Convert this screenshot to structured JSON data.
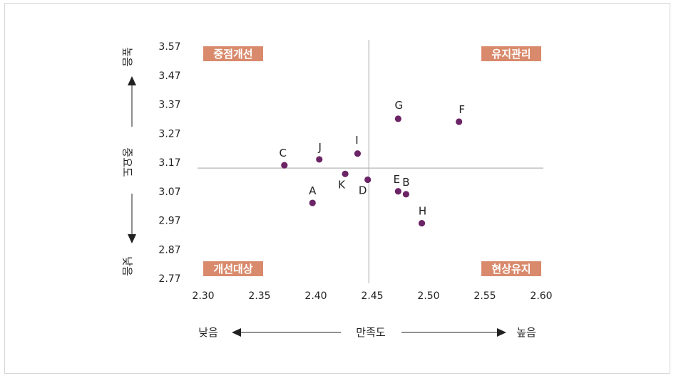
{
  "chart_data": {
    "type": "scatter",
    "title": "",
    "xlabel": "만족도",
    "ylabel": "중요도",
    "x_low_label": "낮음",
    "x_high_label": "높음",
    "y_low_label": "낮음",
    "y_high_label": "높음",
    "xlim": [
      2.3,
      2.6
    ],
    "ylim": [
      2.77,
      3.57
    ],
    "x_ticks": [
      "2.30",
      "2.35",
      "2.40",
      "2.45",
      "2.50",
      "2.55",
      "2.60"
    ],
    "y_ticks": [
      "3.57",
      "3.47",
      "3.37",
      "3.27",
      "3.17",
      "3.07",
      "2.97",
      "2.87",
      "2.77"
    ],
    "x_mean": 2.447,
    "y_mean": 3.15,
    "grid": false,
    "quadrants": {
      "top_left": "중점개선",
      "top_right": "유지관리",
      "bottom_left": "개선대상",
      "bottom_right": "현상유지"
    },
    "points": [
      {
        "label": "A",
        "x": 2.397,
        "y": 3.03
      },
      {
        "label": "B",
        "x": 2.48,
        "y": 3.06
      },
      {
        "label": "C",
        "x": 2.372,
        "y": 3.16
      },
      {
        "label": "D",
        "x": 2.446,
        "y": 3.11
      },
      {
        "label": "E",
        "x": 2.473,
        "y": 3.07
      },
      {
        "label": "F",
        "x": 2.527,
        "y": 3.31
      },
      {
        "label": "G",
        "x": 2.473,
        "y": 3.32
      },
      {
        "label": "H",
        "x": 2.494,
        "y": 2.96
      },
      {
        "label": "I",
        "x": 2.437,
        "y": 3.2
      },
      {
        "label": "J",
        "x": 2.403,
        "y": 3.18
      },
      {
        "label": "K",
        "x": 2.426,
        "y": 3.13
      }
    ],
    "colors": {
      "point": "#6b2465",
      "quadrant_label_bg": "#d98a6c",
      "reference_line": "#b5b5b5"
    }
  }
}
